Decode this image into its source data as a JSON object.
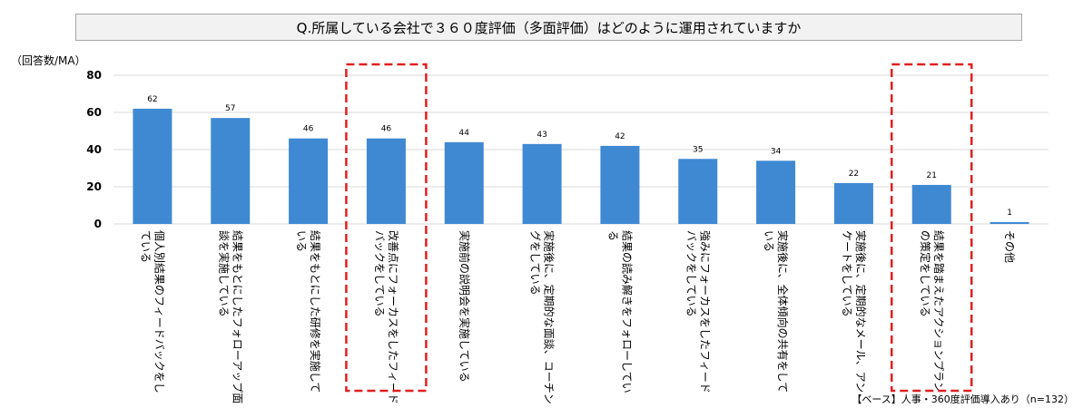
{
  "title": "Q.所属している会社で３６０度評価（多面評価）はどのように運用されていますか",
  "unit_label": "（回答数/MA）",
  "footnote": "【ベース】人事・360度評価導入あり（n=132）",
  "colors": {
    "bar": "#3f89d3",
    "highlight": "#e02020",
    "grid": "#d9d9d9"
  },
  "chart_data": {
    "type": "bar",
    "title": "Q.所属している会社で３６０度評価（多面評価）はどのように運用されていますか",
    "ylabel": "（回答数/MA）",
    "xlabel": "",
    "ylim": [
      0,
      80
    ],
    "yticks": [
      0,
      20,
      40,
      60,
      80
    ],
    "grid": true,
    "categories": [
      [
        "個人別結果のフィードバックをし",
        "ている"
      ],
      [
        "結果をもとにしたフォローアップ面",
        "談を実施している"
      ],
      [
        "結果をもとにした研修を実施して",
        "いる"
      ],
      [
        "改善点にフォーカスをしたフィード",
        "バックをしている"
      ],
      [
        "実施前の説明会を実施している"
      ],
      [
        "実施後に、定期的な面談、コーチン",
        "グをしている"
      ],
      [
        "結果の読み解きをフォローしてい",
        "る"
      ],
      [
        "強みにフォーカスをしたフィード",
        "バックをしている"
      ],
      [
        "実施後に、全体傾向の共有をして",
        "いる"
      ],
      [
        "実施後に、定期的なメール、アン",
        "ケートをしている"
      ],
      [
        "結果を踏まえたアクションプラン",
        "の策定をしている"
      ],
      [
        "その他"
      ]
    ],
    "values": [
      62,
      57,
      46,
      46,
      44,
      43,
      42,
      35,
      34,
      22,
      21,
      1
    ],
    "highlighted": [
      3,
      10
    ]
  }
}
